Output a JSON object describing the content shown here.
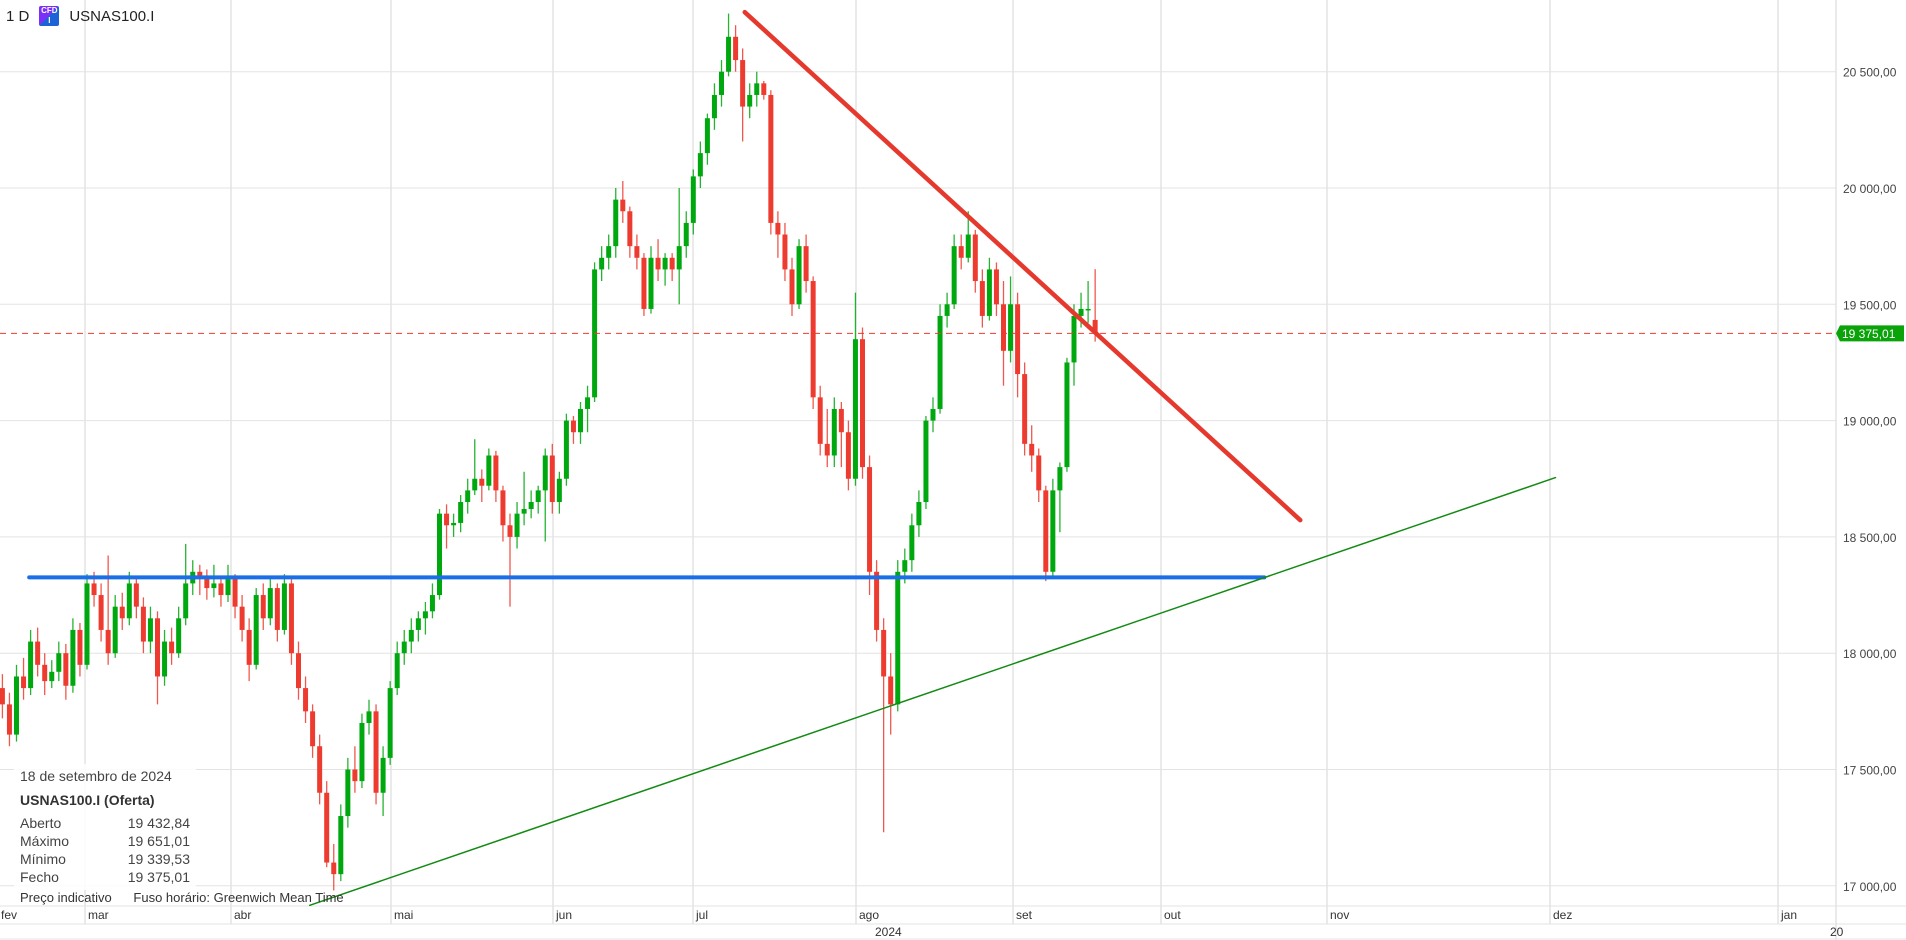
{
  "header": {
    "timeframe": "1 D",
    "symbol": "USNAS100.I",
    "icon": "cfd-icon"
  },
  "info_panel": {
    "date": "18 de setembro de 2024",
    "title": "USNAS100.I (Oferta)",
    "rows": [
      {
        "label": "Aberto",
        "value": "19 432,84"
      },
      {
        "label": "Máximo",
        "value": "19 651,01"
      },
      {
        "label": "Mínimo",
        "value": "19 339,53"
      },
      {
        "label": "Fecho",
        "value": "19 375,01"
      }
    ]
  },
  "footer": {
    "price_type": "Preço indicativo",
    "timezone": "Fuso horário: Greenwich Mean Time"
  },
  "colors": {
    "up": "#00a80f",
    "down": "#ee3b2f",
    "trend_down": "#e5392e",
    "support": "#1a6fe8",
    "trend_up": "#138a13",
    "price_label": "#0aa30a"
  },
  "chart_data": {
    "type": "candlestick",
    "ylim": [
      16900,
      20800
    ],
    "y_ticks": [
      17000,
      17500,
      18000,
      18500,
      19000,
      19500,
      20000,
      20500
    ],
    "y_tick_labels": [
      "17 000,00",
      "17 500,00",
      "18 000,00",
      "18 500,00",
      "19 000,00",
      "19 500,00",
      "20 000,00",
      "20 500,00"
    ],
    "x_month_labels": [
      "fev",
      "mar",
      "abr",
      "mai",
      "jun",
      "jul",
      "ago",
      "set",
      "out",
      "nov",
      "dez",
      "jan"
    ],
    "x_year_labels": [
      "2024",
      "20"
    ],
    "grid": true,
    "current_price": 19375.01,
    "current_price_label": "19 375,01",
    "candle_fields": [
      "open",
      "high",
      "low",
      "close"
    ],
    "candles": [
      [
        17850,
        17910,
        17720,
        17780
      ],
      [
        17780,
        17830,
        17600,
        17650
      ],
      [
        17650,
        17950,
        17620,
        17900
      ],
      [
        17900,
        17980,
        17800,
        17850
      ],
      [
        17850,
        18100,
        17820,
        18050
      ],
      [
        18050,
        18110,
        17900,
        17950
      ],
      [
        17950,
        18000,
        17820,
        17880
      ],
      [
        17880,
        17970,
        17850,
        17920
      ],
      [
        17920,
        18050,
        17880,
        18000
      ],
      [
        18000,
        18040,
        17800,
        17860
      ],
      [
        17860,
        18150,
        17830,
        18100
      ],
      [
        18100,
        18130,
        17900,
        17950
      ],
      [
        17950,
        18340,
        17930,
        18300
      ],
      [
        18300,
        18350,
        18200,
        18250
      ],
      [
        18250,
        18300,
        18050,
        18100
      ],
      [
        18100,
        18420,
        17950,
        18000
      ],
      [
        18000,
        18250,
        17980,
        18200
      ],
      [
        18200,
        18260,
        18100,
        18150
      ],
      [
        18150,
        18350,
        18120,
        18300
      ],
      [
        18300,
        18330,
        18150,
        18200
      ],
      [
        18200,
        18240,
        18000,
        18050
      ],
      [
        18050,
        18200,
        18000,
        18150
      ],
      [
        18150,
        18180,
        17780,
        17900
      ],
      [
        17900,
        18100,
        17860,
        18050
      ],
      [
        18050,
        18110,
        17950,
        18000
      ],
      [
        18000,
        18200,
        17980,
        18150
      ],
      [
        18150,
        18470,
        18120,
        18300
      ],
      [
        18300,
        18400,
        18250,
        18350
      ],
      [
        18350,
        18380,
        18250,
        18320
      ],
      [
        18320,
        18360,
        18230,
        18280
      ],
      [
        18280,
        18380,
        18240,
        18300
      ],
      [
        18300,
        18330,
        18200,
        18250
      ],
      [
        18250,
        18380,
        18220,
        18330
      ],
      [
        18330,
        18340,
        18150,
        18200
      ],
      [
        18200,
        18250,
        18050,
        18100
      ],
      [
        18100,
        18150,
        17880,
        17950
      ],
      [
        17950,
        18280,
        17930,
        18250
      ],
      [
        18250,
        18300,
        18100,
        18150
      ],
      [
        18150,
        18320,
        18120,
        18280
      ],
      [
        18280,
        18300,
        18050,
        18100
      ],
      [
        18100,
        18340,
        18080,
        18300
      ],
      [
        18300,
        18320,
        17950,
        18000
      ],
      [
        18000,
        18050,
        17800,
        17850
      ],
      [
        17850,
        17900,
        17700,
        17750
      ],
      [
        17750,
        17780,
        17550,
        17600
      ],
      [
        17600,
        17650,
        17350,
        17400
      ],
      [
        17400,
        17450,
        17080,
        17100
      ],
      [
        17100,
        17180,
        16980,
        17050
      ],
      [
        17050,
        17350,
        17020,
        17300
      ],
      [
        17300,
        17550,
        17250,
        17500
      ],
      [
        17500,
        17600,
        17400,
        17450
      ],
      [
        17450,
        17740,
        17420,
        17700
      ],
      [
        17700,
        17800,
        17650,
        17750
      ],
      [
        17750,
        17780,
        17350,
        17400
      ],
      [
        17400,
        17600,
        17300,
        17550
      ],
      [
        17550,
        17880,
        17520,
        17850
      ],
      [
        17850,
        18050,
        17820,
        18000
      ],
      [
        18000,
        18100,
        17950,
        18050
      ],
      [
        18050,
        18150,
        18000,
        18100
      ],
      [
        18100,
        18180,
        18050,
        18150
      ],
      [
        18150,
        18220,
        18080,
        18180
      ],
      [
        18180,
        18300,
        18150,
        18250
      ],
      [
        18250,
        18620,
        18230,
        18600
      ],
      [
        18600,
        18640,
        18450,
        18550
      ],
      [
        18550,
        18600,
        18500,
        18560
      ],
      [
        18560,
        18680,
        18520,
        18650
      ],
      [
        18650,
        18750,
        18600,
        18700
      ],
      [
        18700,
        18920,
        18680,
        18750
      ],
      [
        18750,
        18790,
        18650,
        18720
      ],
      [
        18720,
        18880,
        18700,
        18850
      ],
      [
        18850,
        18870,
        18650,
        18700
      ],
      [
        18700,
        18720,
        18480,
        18550
      ],
      [
        18550,
        18600,
        18200,
        18500
      ],
      [
        18500,
        18650,
        18450,
        18600
      ],
      [
        18600,
        18780,
        18550,
        18620
      ],
      [
        18620,
        18700,
        18580,
        18650
      ],
      [
        18650,
        18720,
        18600,
        18700
      ],
      [
        18700,
        18880,
        18480,
        18850
      ],
      [
        18850,
        18900,
        18600,
        18650
      ],
      [
        18650,
        18780,
        18600,
        18750
      ],
      [
        18750,
        19030,
        18720,
        19000
      ],
      [
        19000,
        19020,
        18900,
        18950
      ],
      [
        18950,
        19080,
        18900,
        19050
      ],
      [
        19050,
        19150,
        18950,
        19100
      ],
      [
        19100,
        19680,
        19080,
        19650
      ],
      [
        19650,
        19750,
        19600,
        19700
      ],
      [
        19700,
        19800,
        19650,
        19750
      ],
      [
        19750,
        20000,
        19700,
        19950
      ],
      [
        19950,
        20030,
        19850,
        19900
      ],
      [
        19900,
        19920,
        19700,
        19750
      ],
      [
        19750,
        19800,
        19650,
        19700
      ],
      [
        19700,
        19720,
        19450,
        19480
      ],
      [
        19480,
        19750,
        19460,
        19700
      ],
      [
        19700,
        19780,
        19600,
        19650
      ],
      [
        19650,
        19720,
        19580,
        19700
      ],
      [
        19700,
        19720,
        19600,
        19650
      ],
      [
        19650,
        20000,
        19500,
        19750
      ],
      [
        19750,
        19900,
        19700,
        19850
      ],
      [
        19850,
        20080,
        19800,
        20050
      ],
      [
        20050,
        20200,
        20000,
        20150
      ],
      [
        20150,
        20320,
        20100,
        20300
      ],
      [
        20300,
        20450,
        20250,
        20400
      ],
      [
        20400,
        20550,
        20350,
        20500
      ],
      [
        20500,
        20750,
        20480,
        20650
      ],
      [
        20650,
        20700,
        20500,
        20550
      ],
      [
        20550,
        20600,
        20200,
        20350
      ],
      [
        20350,
        20450,
        20300,
        20400
      ],
      [
        20400,
        20500,
        20350,
        20450
      ],
      [
        20450,
        20460,
        20380,
        20400
      ],
      [
        20400,
        20420,
        19800,
        19850
      ],
      [
        19850,
        19900,
        19700,
        19800
      ],
      [
        19800,
        19850,
        19600,
        19650
      ],
      [
        19650,
        19700,
        19450,
        19500
      ],
      [
        19500,
        19780,
        19480,
        19750
      ],
      [
        19750,
        19800,
        19550,
        19600
      ],
      [
        19600,
        19620,
        19050,
        19100
      ],
      [
        19100,
        19150,
        18850,
        18900
      ],
      [
        18900,
        19050,
        18800,
        18850
      ],
      [
        18850,
        19100,
        18800,
        19050
      ],
      [
        19050,
        19080,
        18800,
        18950
      ],
      [
        18950,
        19000,
        18700,
        18750
      ],
      [
        18750,
        19550,
        18720,
        19350
      ],
      [
        19350,
        19400,
        18750,
        18800
      ],
      [
        18800,
        18850,
        18250,
        18350
      ],
      [
        18350,
        18400,
        18050,
        18100
      ],
      [
        18100,
        18150,
        17230,
        17900
      ],
      [
        17900,
        18000,
        17650,
        17780
      ],
      [
        17780,
        18400,
        17750,
        18350
      ],
      [
        18350,
        18450,
        18300,
        18400
      ],
      [
        18400,
        18600,
        18350,
        18550
      ],
      [
        18550,
        18700,
        18500,
        18650
      ],
      [
        18650,
        19020,
        18620,
        19000
      ],
      [
        19000,
        19100,
        18950,
        19050
      ],
      [
        19050,
        19500,
        19030,
        19450
      ],
      [
        19450,
        19550,
        19400,
        19500
      ],
      [
        19500,
        19800,
        19480,
        19750
      ],
      [
        19750,
        19800,
        19650,
        19700
      ],
      [
        19700,
        19900,
        19680,
        19800
      ],
      [
        19800,
        19820,
        19550,
        19600
      ],
      [
        19600,
        19650,
        19400,
        19450
      ],
      [
        19450,
        19700,
        19430,
        19650
      ],
      [
        19650,
        19680,
        19450,
        19500
      ],
      [
        19500,
        19600,
        19150,
        19300
      ],
      [
        19300,
        19620,
        19250,
        19500
      ],
      [
        19500,
        19550,
        19100,
        19200
      ],
      [
        19200,
        19250,
        18850,
        18900
      ],
      [
        18900,
        18980,
        18780,
        18850
      ],
      [
        18850,
        18880,
        18650,
        18700
      ],
      [
        18700,
        18720,
        18310,
        18350
      ],
      [
        18350,
        18750,
        18330,
        18700
      ],
      [
        18700,
        18820,
        18520,
        18800
      ],
      [
        18800,
        19270,
        18780,
        19250
      ],
      [
        19250,
        19500,
        19150,
        19450
      ],
      [
        19450,
        19550,
        19400,
        19480
      ],
      [
        19480,
        19600,
        19420,
        19480
      ],
      [
        19432.84,
        19651.01,
        19339.53,
        19375.01
      ]
    ],
    "drawings": [
      {
        "kind": "trendline",
        "color": "#e5392e",
        "from": {
          "bar": 105.3,
          "price": 20756
        },
        "to": {
          "bar": 184.1,
          "price": 18572
        }
      },
      {
        "kind": "horizontal",
        "color": "#1a6fe8",
        "from": {
          "bar": 3.8,
          "price": 18326
        },
        "to": {
          "bar": 179,
          "price": 18326
        }
      },
      {
        "kind": "trendline",
        "color": "#138a13",
        "from": {
          "bar": 43.6,
          "price": 16916
        },
        "to": {
          "bar": 220.3,
          "price": 18755
        }
      }
    ]
  }
}
